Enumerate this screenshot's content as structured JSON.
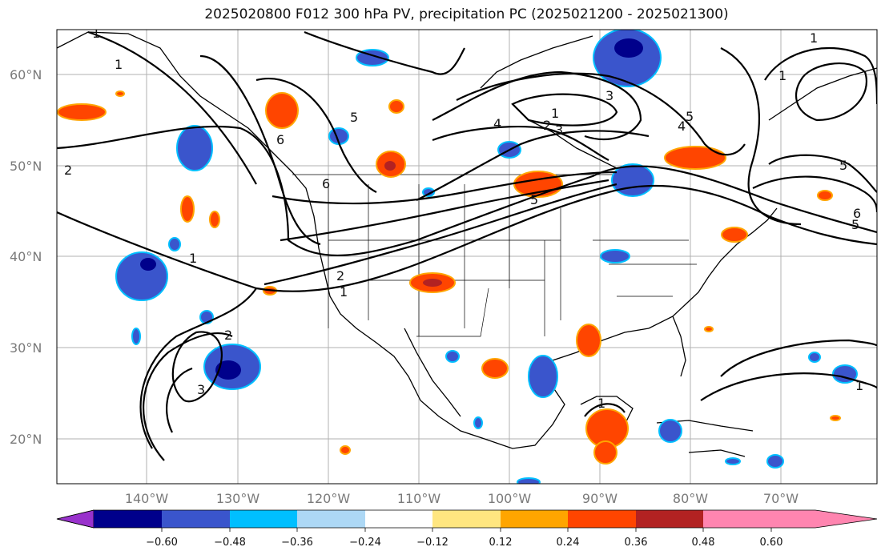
{
  "title": "2025020800 F012 300 hPa PV, precipitation PC (2025021200 - 2025021300)",
  "map": {
    "lon_ticks": [
      "140°W",
      "130°W",
      "120°W",
      "110°W",
      "100°W",
      "90°W",
      "80°W",
      "70°W"
    ],
    "lat_ticks": [
      "60°N",
      "50°N",
      "40°N",
      "30°N",
      "20°N"
    ],
    "contour_labels": [
      "1",
      "1",
      "2",
      "1",
      "1",
      "1",
      "2",
      "3",
      "2",
      "6",
      "6",
      "5",
      "5",
      "3",
      "1",
      "2",
      "3",
      "4",
      "5",
      "4",
      "5",
      "5",
      "6",
      "1",
      "1",
      "1"
    ]
  },
  "colorbar": {
    "tick_labels": [
      "−0.60",
      "−0.48",
      "−0.36",
      "−0.24",
      "−0.12",
      "0.12",
      "0.24",
      "0.36",
      "0.48",
      "0.60"
    ],
    "colors": [
      "#9932cc",
      "#00008b",
      "#3a55cc",
      "#00bfff",
      "#add8f5",
      "#ffffff",
      "#ffe680",
      "#ffa500",
      "#ff4500",
      "#b22222",
      "#ff85b0"
    ]
  }
}
